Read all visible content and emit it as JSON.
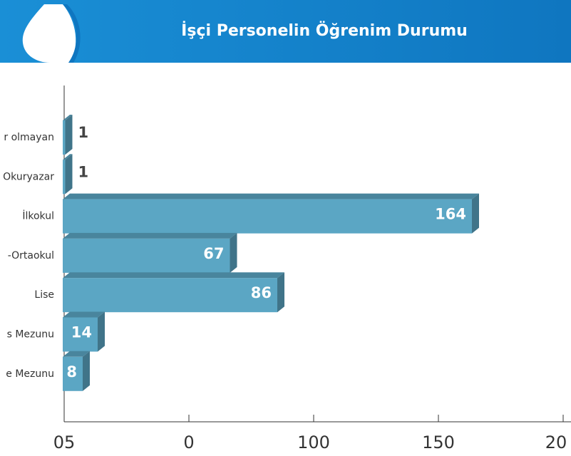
{
  "chart_data": {
    "type": "bar",
    "orientation": "horizontal",
    "title": "İşçi Personelin Öğrenim Durumu",
    "categories": [
      "r olmayan",
      "Okuryazar",
      "İlkokul",
      "-Ortaokul",
      "Lise",
      "s Mezunu",
      "e Mezunu"
    ],
    "values": [
      1,
      1,
      164,
      67,
      86,
      14,
      8
    ],
    "color": "#5ba6c4",
    "xlim": [
      0,
      200
    ],
    "xticks": [
      {
        "value": 0,
        "label": "05"
      },
      {
        "value": 50,
        "label": "0"
      },
      100,
      150,
      {
        "value": 200,
        "label": "20"
      }
    ]
  }
}
